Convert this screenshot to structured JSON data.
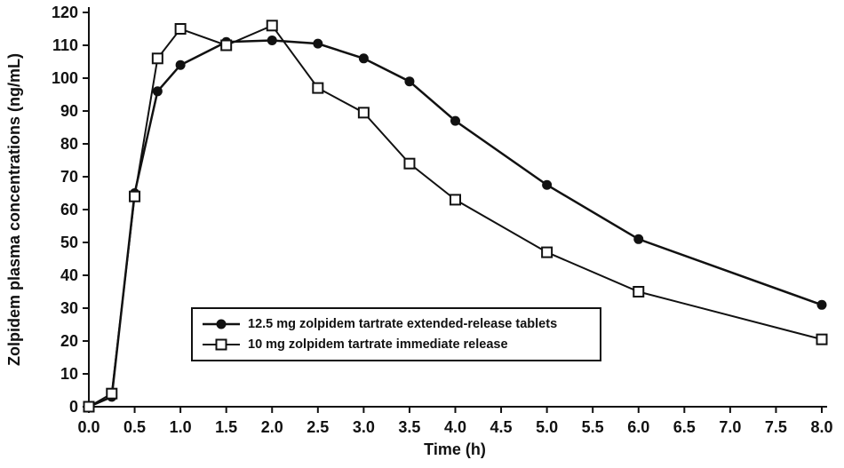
{
  "chart_data": {
    "type": "line",
    "title": "",
    "xlabel": "Time (h)",
    "ylabel": "Zolpidem plasma concentrations (ng/mL)",
    "xlim": [
      0,
      8
    ],
    "ylim": [
      0,
      120
    ],
    "x_ticks": [
      0.0,
      0.5,
      1.0,
      1.5,
      2.0,
      2.5,
      3.0,
      3.5,
      4.0,
      4.5,
      5.0,
      5.5,
      6.0,
      6.5,
      7.0,
      7.5,
      8.0
    ],
    "y_ticks": [
      0,
      10,
      20,
      30,
      40,
      50,
      60,
      70,
      80,
      90,
      100,
      110,
      120
    ],
    "grid": false,
    "legend_position": "inside-lower-left",
    "axis_color": "#111111",
    "series": [
      {
        "name": "12.5 mg zolpidem tartrate extended-release tablets",
        "marker": "filled-circle",
        "color": "#111111",
        "x": [
          0,
          0.25,
          0.5,
          0.75,
          1.0,
          1.5,
          2.0,
          2.5,
          3.0,
          3.5,
          4.0,
          5.0,
          6.0,
          8.0
        ],
        "y": [
          0,
          3,
          65,
          96,
          104,
          111,
          111.5,
          110.5,
          106,
          99,
          87,
          67.5,
          51,
          31
        ]
      },
      {
        "name": "10 mg zolpidem tartrate immediate release",
        "marker": "open-square",
        "color": "#111111",
        "x": [
          0,
          0.25,
          0.5,
          0.75,
          1.0,
          1.5,
          2.0,
          2.5,
          3.0,
          3.5,
          4.0,
          5.0,
          6.0,
          8.0
        ],
        "y": [
          0,
          4,
          64,
          106,
          115,
          110,
          116,
          97,
          89.5,
          74,
          63,
          47,
          35,
          20.5
        ]
      }
    ]
  }
}
